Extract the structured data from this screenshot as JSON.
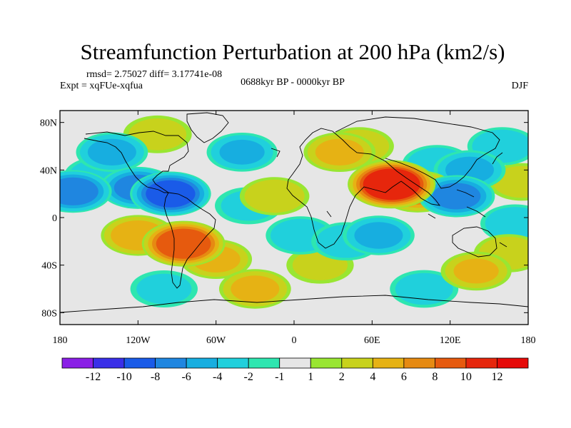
{
  "chart_data": {
    "type": "heatmap",
    "title": "Streamfunction Perturbation at 200 hPa (km2/s)",
    "stats_line": "rmsd= 2.75027  diff= 3.17741e-08",
    "experiment": "Expt = xqFUe-xqfua",
    "period": "0688kyr BP - 0000kyr BP",
    "season": "DJF",
    "map_projection": "cylindrical equidistant",
    "lon_range": [
      -180,
      180
    ],
    "lat_range": [
      -90,
      90
    ],
    "x_ticks": [
      {
        "value": -180,
        "label": "180"
      },
      {
        "value": -120,
        "label": "120W"
      },
      {
        "value": -60,
        "label": "60W"
      },
      {
        "value": 0,
        "label": "0"
      },
      {
        "value": 60,
        "label": "60E"
      },
      {
        "value": 120,
        "label": "120E"
      },
      {
        "value": 180,
        "label": "180"
      }
    ],
    "y_ticks": [
      {
        "value": 80,
        "label": "80N"
      },
      {
        "value": 40,
        "label": "40N"
      },
      {
        "value": 0,
        "label": "0"
      },
      {
        "value": -40,
        "label": "40S"
      },
      {
        "value": -80,
        "label": "80S"
      }
    ],
    "colorbar": {
      "boundaries": [
        -12,
        -10,
        -8,
        -6,
        -4,
        -2,
        -1,
        1,
        2,
        4,
        6,
        8,
        10,
        12
      ],
      "labels": [
        "-12",
        "-10",
        "-8",
        "-6",
        "-4",
        "-2",
        "-1",
        "1",
        "2",
        "4",
        "6",
        "8",
        "10",
        "12"
      ],
      "colors": [
        "#8a1fe6",
        "#3a2fe8",
        "#1a5be8",
        "#1f86e0",
        "#17aee0",
        "#20d0dc",
        "#2ee6b0",
        "#e6e6e6",
        "#99e632",
        "#c8d21c",
        "#e6b214",
        "#e68a12",
        "#e65a0e",
        "#e6260c",
        "#e60a08"
      ]
    },
    "anomalies": [
      {
        "lon": -170,
        "lat": 22,
        "value": -6.5
      },
      {
        "lon": -140,
        "lat": 55,
        "value": -4
      },
      {
        "lon": -150,
        "lat": 35,
        "value": -3
      },
      {
        "lon": -95,
        "lat": 20,
        "value": -8
      },
      {
        "lon": -120,
        "lat": 25,
        "value": -6
      },
      {
        "lon": -105,
        "lat": 70,
        "value": 2.5
      },
      {
        "lon": -40,
        "lat": 55,
        "value": -3.5
      },
      {
        "lon": -35,
        "lat": 10,
        "value": -2
      },
      {
        "lon": -85,
        "lat": -22,
        "value": 9
      },
      {
        "lon": -120,
        "lat": -15,
        "value": 5
      },
      {
        "lon": -60,
        "lat": -35,
        "value": 4
      },
      {
        "lon": -30,
        "lat": -60,
        "value": 4
      },
      {
        "lon": -15,
        "lat": 18,
        "value": 3
      },
      {
        "lon": 5,
        "lat": -15,
        "value": -3
      },
      {
        "lon": 20,
        "lat": -40,
        "value": 2
      },
      {
        "lon": 35,
        "lat": 55,
        "value": 4
      },
      {
        "lon": 50,
        "lat": 60,
        "value": 3
      },
      {
        "lon": 75,
        "lat": 28,
        "value": 11
      },
      {
        "lon": 95,
        "lat": 22,
        "value": 6
      },
      {
        "lon": 110,
        "lat": 45,
        "value": -3
      },
      {
        "lon": 125,
        "lat": 18,
        "value": -6
      },
      {
        "lon": 135,
        "lat": 40,
        "value": -4
      },
      {
        "lon": 65,
        "lat": -15,
        "value": -4
      },
      {
        "lon": 40,
        "lat": -20,
        "value": -3
      },
      {
        "lon": 140,
        "lat": -45,
        "value": 3.5
      },
      {
        "lon": 170,
        "lat": -5,
        "value": -3
      },
      {
        "lon": 160,
        "lat": 60,
        "value": -3
      },
      {
        "lon": 175,
        "lat": 30,
        "value": 2.5
      },
      {
        "lon": 165,
        "lat": -30,
        "value": 3
      },
      {
        "lon": 100,
        "lat": -60,
        "value": -2.5
      },
      {
        "lon": -100,
        "lat": -60,
        "value": -2
      }
    ]
  }
}
